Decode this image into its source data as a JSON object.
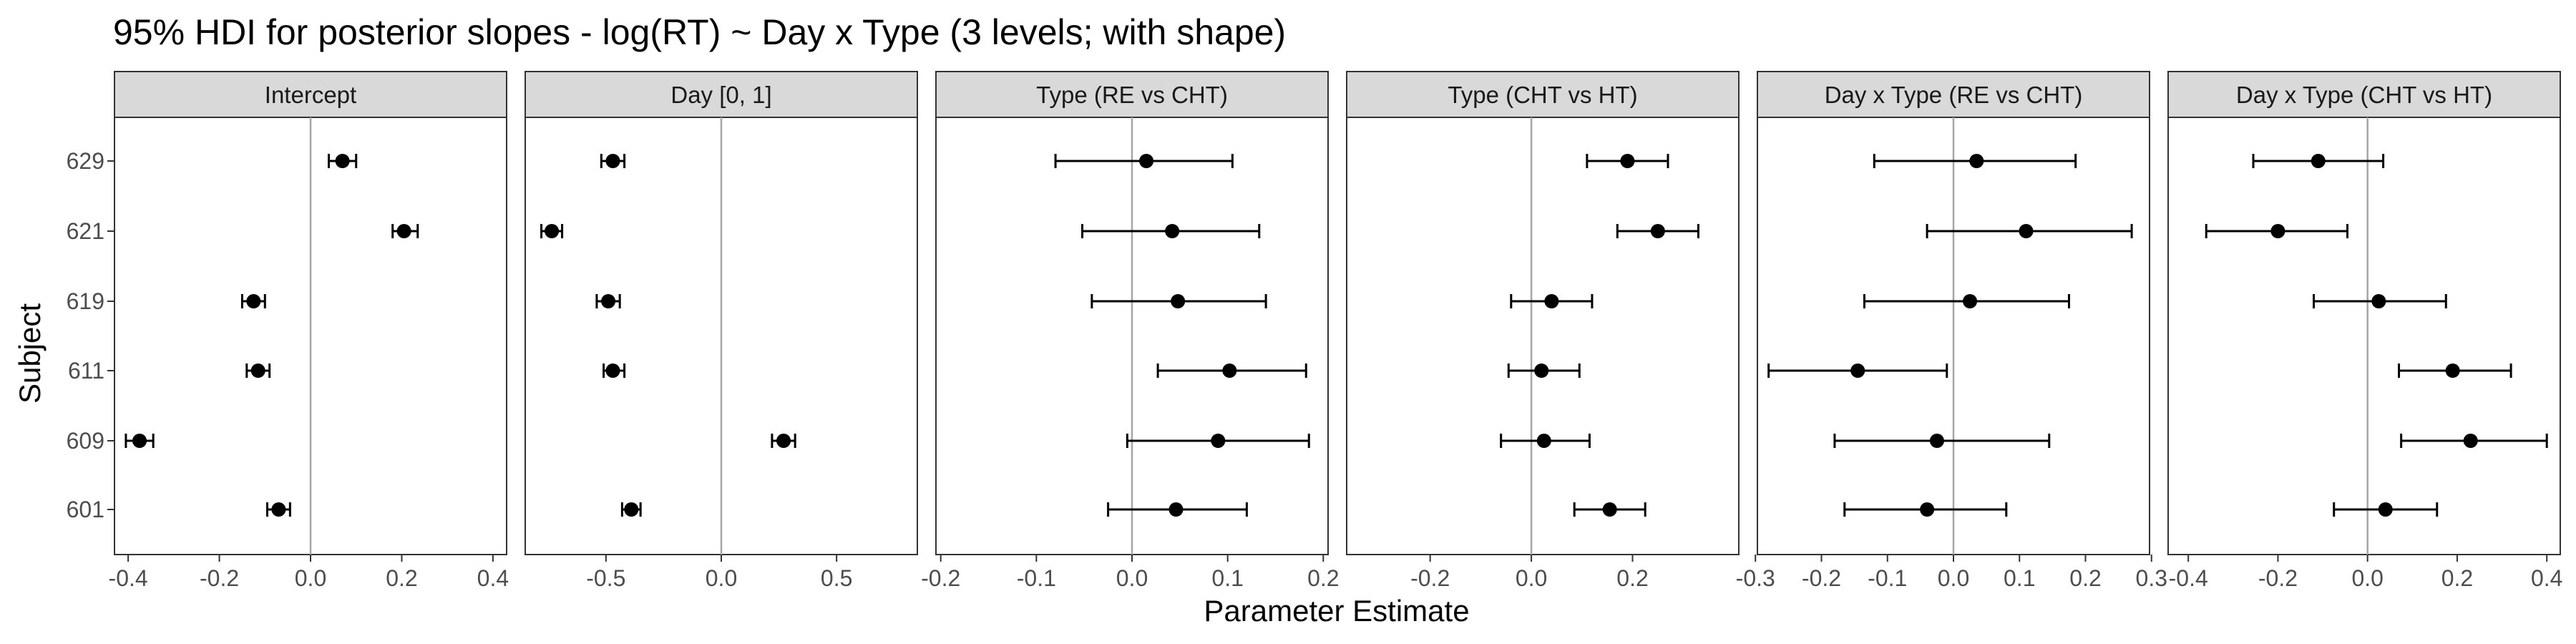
{
  "title": "95% HDI for posterior slopes - log(RT) ~ Day x Type (3 levels; with shape)",
  "xlabel": "Parameter Estimate",
  "ylabel": "Subject",
  "colors": {
    "point": "#000000",
    "zero_line": "#a6a6a6",
    "strip_fill": "#d9d9d9",
    "frame": "#333333"
  },
  "chart_data": [
    {
      "type": "scatter",
      "panel": "Intercept",
      "categories": [
        "629",
        "621",
        "619",
        "611",
        "609",
        "601"
      ],
      "xlim": [
        -0.43,
        0.43
      ],
      "xticks": [
        "-0.4",
        "-0.2",
        "0.0",
        "0.2",
        "0.4"
      ],
      "points": [
        {
          "subject": "629",
          "mean": 0.07,
          "low": 0.04,
          "high": 0.1
        },
        {
          "subject": "621",
          "mean": 0.205,
          "low": 0.18,
          "high": 0.235
        },
        {
          "subject": "619",
          "mean": -0.125,
          "low": -0.15,
          "high": -0.1
        },
        {
          "subject": "611",
          "mean": -0.115,
          "low": -0.14,
          "high": -0.09
        },
        {
          "subject": "609",
          "mean": -0.375,
          "low": -0.405,
          "high": -0.345
        },
        {
          "subject": "601",
          "mean": -0.07,
          "low": -0.095,
          "high": -0.045
        }
      ]
    },
    {
      "type": "scatter",
      "panel": "Day [0, 1]",
      "categories": [
        "629",
        "621",
        "619",
        "611",
        "609",
        "601"
      ],
      "xlim": [
        -0.85,
        0.85
      ],
      "xticks": [
        "-0.5",
        "0.0",
        "0.5"
      ],
      "points": [
        {
          "subject": "629",
          "mean": -0.47,
          "low": -0.52,
          "high": -0.42
        },
        {
          "subject": "621",
          "mean": -0.735,
          "low": -0.78,
          "high": -0.69
        },
        {
          "subject": "619",
          "mean": -0.49,
          "low": -0.54,
          "high": -0.44
        },
        {
          "subject": "611",
          "mean": -0.47,
          "low": -0.51,
          "high": -0.42
        },
        {
          "subject": "609",
          "mean": 0.27,
          "low": 0.22,
          "high": 0.32
        },
        {
          "subject": "601",
          "mean": -0.39,
          "low": -0.43,
          "high": -0.35
        }
      ]
    },
    {
      "type": "scatter",
      "panel": "Type (RE vs CHT)",
      "categories": [
        "629",
        "621",
        "619",
        "611",
        "609",
        "601"
      ],
      "xlim": [
        -0.205,
        0.205
      ],
      "xticks": [
        "-0.2",
        "-0.1",
        "0.0",
        "0.1",
        "0.2"
      ],
      "points": [
        {
          "subject": "629",
          "mean": 0.015,
          "low": -0.08,
          "high": 0.105
        },
        {
          "subject": "621",
          "mean": 0.042,
          "low": -0.052,
          "high": 0.133
        },
        {
          "subject": "619",
          "mean": 0.048,
          "low": -0.042,
          "high": 0.14
        },
        {
          "subject": "611",
          "mean": 0.102,
          "low": 0.027,
          "high": 0.182
        },
        {
          "subject": "609",
          "mean": 0.09,
          "low": -0.005,
          "high": 0.185
        },
        {
          "subject": "601",
          "mean": 0.046,
          "low": -0.025,
          "high": 0.12
        }
      ]
    },
    {
      "type": "scatter",
      "panel": "Type (CHT vs HT)",
      "categories": [
        "629",
        "621",
        "619",
        "611",
        "609",
        "601"
      ],
      "xlim": [
        -0.365,
        0.41
      ],
      "xticks": [
        "-0.2",
        "0.0",
        "0.2"
      ],
      "points": [
        {
          "subject": "629",
          "mean": 0.19,
          "low": 0.11,
          "high": 0.27
        },
        {
          "subject": "621",
          "mean": 0.25,
          "low": 0.17,
          "high": 0.33
        },
        {
          "subject": "619",
          "mean": 0.04,
          "low": -0.04,
          "high": 0.12
        },
        {
          "subject": "611",
          "mean": 0.02,
          "low": -0.045,
          "high": 0.095
        },
        {
          "subject": "609",
          "mean": 0.025,
          "low": -0.06,
          "high": 0.115
        },
        {
          "subject": "601",
          "mean": 0.155,
          "low": 0.085,
          "high": 0.225
        }
      ]
    },
    {
      "type": "scatter",
      "panel": "Day x Type (RE vs CHT)",
      "categories": [
        "629",
        "621",
        "619",
        "611",
        "609",
        "601"
      ],
      "xlim": [
        -0.297,
        0.297
      ],
      "xticks": [
        "-0.3",
        "-0.2",
        "-0.1",
        "0.0",
        "0.1",
        "0.2",
        "0.3"
      ],
      "points": [
        {
          "subject": "629",
          "mean": 0.035,
          "low": -0.12,
          "high": 0.185
        },
        {
          "subject": "621",
          "mean": 0.11,
          "low": -0.04,
          "high": 0.27
        },
        {
          "subject": "619",
          "mean": 0.025,
          "low": -0.135,
          "high": 0.175
        },
        {
          "subject": "611",
          "mean": -0.145,
          "low": -0.28,
          "high": -0.01
        },
        {
          "subject": "609",
          "mean": -0.025,
          "low": -0.18,
          "high": 0.145
        },
        {
          "subject": "601",
          "mean": -0.04,
          "low": -0.165,
          "high": 0.08
        }
      ]
    },
    {
      "type": "scatter",
      "panel": "Day x Type (CHT vs HT)",
      "categories": [
        "629",
        "621",
        "619",
        "611",
        "609",
        "601"
      ],
      "xlim": [
        -0.445,
        0.43
      ],
      "xticks": [
        "-0.4",
        "-0.2",
        "0.0",
        "0.2",
        "0.4"
      ],
      "points": [
        {
          "subject": "629",
          "mean": -0.11,
          "low": -0.255,
          "high": 0.035
        },
        {
          "subject": "621",
          "mean": -0.2,
          "low": -0.36,
          "high": -0.045
        },
        {
          "subject": "619",
          "mean": 0.025,
          "low": -0.12,
          "high": 0.175
        },
        {
          "subject": "611",
          "mean": 0.19,
          "low": 0.07,
          "high": 0.32
        },
        {
          "subject": "609",
          "mean": 0.23,
          "low": 0.075,
          "high": 0.4
        },
        {
          "subject": "601",
          "mean": 0.04,
          "low": -0.075,
          "high": 0.155
        }
      ]
    }
  ]
}
